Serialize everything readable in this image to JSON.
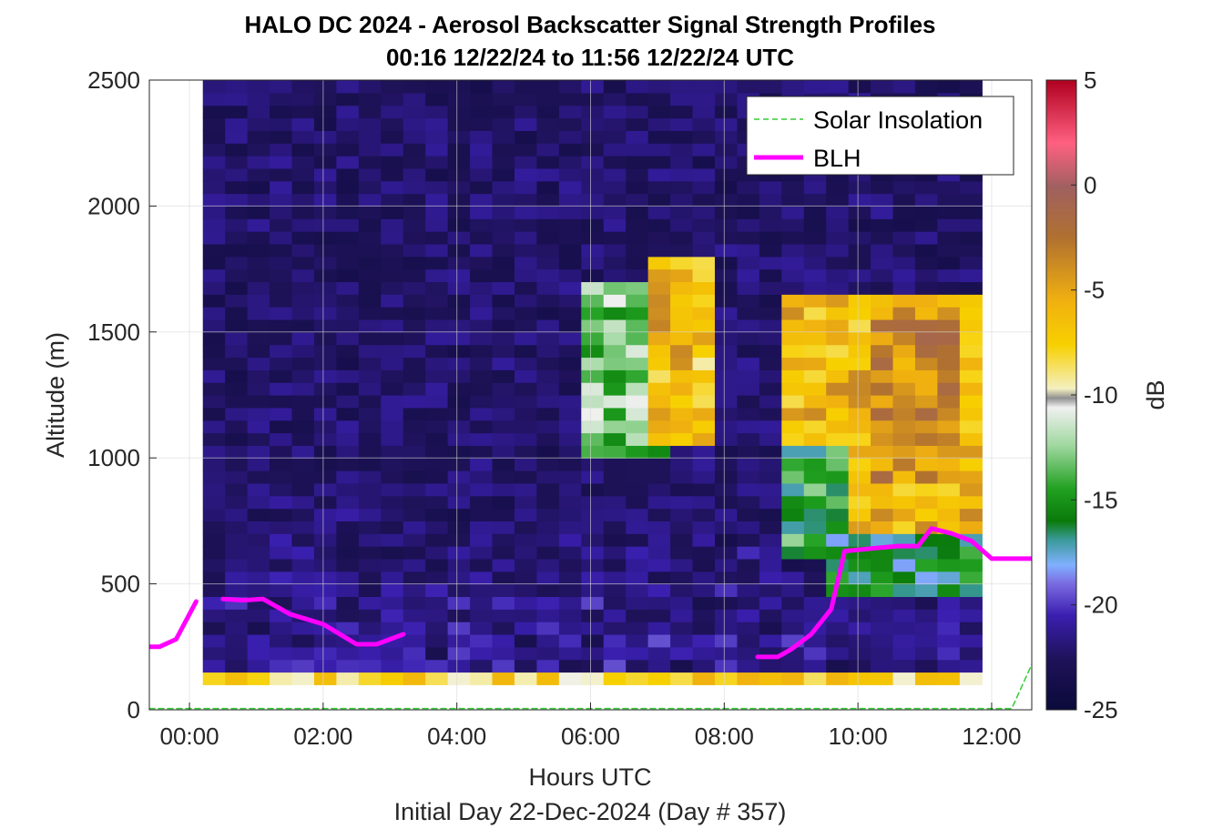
{
  "chart_data": {
    "type": "heatmap",
    "title": "HALO DC 2024 - Aerosol Backscatter Signal Strength Profiles",
    "subtitle": "00:16 12/22/24 to 11:56 12/22/24  UTC",
    "xlabel": "Hours UTC",
    "footer": "Initial Day 22-Dec-2024 (Day # 357)",
    "ylabel": "Altitude (m)",
    "colorbar_label": "dB",
    "xlim": [
      -0.6,
      12.6
    ],
    "ylim": [
      0,
      2500
    ],
    "clim": [
      -25,
      5
    ],
    "x_ticks": [
      0,
      2,
      4,
      6,
      8,
      10,
      12
    ],
    "x_tick_labels": [
      "00:00",
      "02:00",
      "04:00",
      "06:00",
      "08:00",
      "10:00",
      "12:00"
    ],
    "y_ticks": [
      0,
      500,
      1000,
      1500,
      2000,
      2500
    ],
    "y_tick_labels": [
      "0",
      "500",
      "1000",
      "1500",
      "2000",
      "2500"
    ],
    "colorbar_ticks": [
      5,
      0,
      -5,
      -10,
      -15,
      -20,
      -25
    ],
    "colorbar_tick_labels": [
      "5",
      "0",
      "-5",
      "-10",
      "-15",
      "-20",
      "-25"
    ],
    "grid": true,
    "legend_position": "top-right",
    "series": [
      {
        "name": "Solar Insolation",
        "style": "dashed",
        "color": "#33cc33",
        "x": [
          -0.6,
          12.3,
          12.6
        ],
        "y": [
          5,
          5,
          180
        ]
      },
      {
        "name": "BLH",
        "style": "solid",
        "color": "#ff00ff",
        "segments": [
          {
            "x": [
              -0.6,
              -0.45,
              -0.2,
              0.1
            ],
            "y": [
              250,
              250,
              280,
              430
            ]
          },
          {
            "x": [
              0.5,
              0.8,
              1.1,
              1.5,
              2.0,
              2.5,
              2.8,
              3.2
            ],
            "y": [
              440,
              435,
              440,
              380,
              340,
              260,
              260,
              300
            ]
          },
          {
            "x": [
              8.5,
              8.8,
              9.0,
              9.3,
              9.6,
              9.8,
              10.2,
              10.6,
              10.9,
              11.1,
              11.4,
              11.7,
              12.0,
              12.6
            ],
            "y": [
              210,
              210,
              240,
              300,
              400,
              630,
              640,
              650,
              650,
              720,
              700,
              670,
              600,
              600
            ]
          }
        ]
      }
    ],
    "heatmap": {
      "x_start": 0.2,
      "x_step": 0.333,
      "y_start": 100,
      "y_step": 50,
      "n_cols": 35,
      "n_rows": 48,
      "features": [
        {
          "x": [
            5.95,
            7.05
          ],
          "y": [
            1000,
            1700
          ],
          "value": -13
        },
        {
          "x": [
            6.75,
            7.95
          ],
          "y": [
            1050,
            1800
          ],
          "value": -7
        },
        {
          "x": [
            7.0,
            7.6
          ],
          "y": [
            1350,
            1750
          ],
          "value": -5
        },
        {
          "x": [
            9.0,
            11.8
          ],
          "y": [
            700,
            1650
          ],
          "value": -6
        },
        {
          "x": [
            10.2,
            11.4
          ],
          "y": [
            900,
            1600
          ],
          "value": -4
        },
        {
          "x": [
            10.8,
            11.6
          ],
          "y": [
            1350,
            1550
          ],
          "value": -2
        },
        {
          "x": [
            9.0,
            9.9
          ],
          "y": [
            600,
            1050
          ],
          "value": -15
        },
        {
          "x": [
            9.5,
            11.8
          ],
          "y": [
            450,
            700
          ],
          "value": -16
        },
        {
          "x": [
            0.2,
            12.0
          ],
          "y": [
            100,
            150
          ],
          "value": -8
        }
      ]
    }
  },
  "legend": {
    "items": [
      "Solar Insolation",
      "BLH"
    ]
  }
}
